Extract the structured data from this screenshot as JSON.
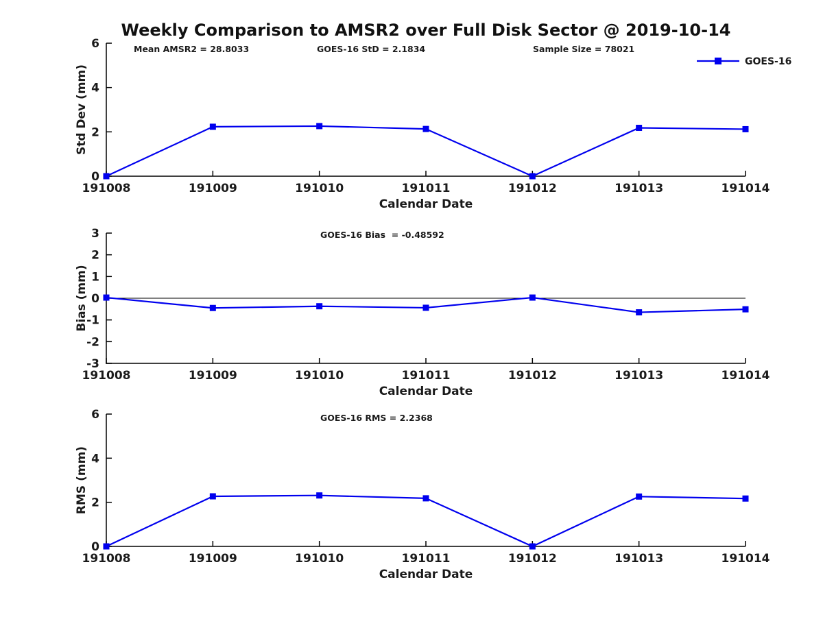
{
  "figure": {
    "title": "Weekly Comparison to AMSR2 over Full Disk Sector @ 2019-10-14",
    "background_color": "#ffffff",
    "text_color": "#1a1a1a",
    "axis_color": "#000000",
    "line_color": "#0000ee"
  },
  "legend": {
    "label": "GOES-16",
    "marker": "blue-square-line-sample",
    "position": "top-right"
  },
  "chart_data": [
    {
      "type": "line",
      "name": "std-dev",
      "annotations": [
        "Mean AMSR2 = 28.8033",
        "GOES-16 StD = 2.1834",
        "Sample Size = 78021"
      ],
      "categories": [
        "191008",
        "191009",
        "191010",
        "191011",
        "191012",
        "191013",
        "191014"
      ],
      "series": [
        {
          "name": "GOES-16",
          "color": "#0000ee",
          "marker": "square",
          "values": [
            0,
            2.23,
            2.26,
            2.13,
            0,
            2.18,
            2.12
          ]
        }
      ],
      "xlabel": "Calendar Date",
      "ylabel": "Std Dev (mm)",
      "ylim": [
        0,
        6
      ],
      "yticks": [
        0,
        2,
        4,
        6
      ],
      "zero_line": false,
      "grid": false,
      "show_legend": true
    },
    {
      "type": "line",
      "name": "bias",
      "annotations": [
        "GOES-16 Bias  = -0.48592"
      ],
      "categories": [
        "191008",
        "191009",
        "191010",
        "191011",
        "191012",
        "191013",
        "191014"
      ],
      "series": [
        {
          "name": "GOES-16",
          "color": "#0000ee",
          "marker": "square",
          "values": [
            0.03,
            -0.45,
            -0.37,
            -0.44,
            0.03,
            -0.65,
            -0.51
          ]
        }
      ],
      "xlabel": "Calendar Date",
      "ylabel": "Bias (mm)",
      "ylim": [
        -3,
        3
      ],
      "yticks": [
        3,
        2,
        1,
        0,
        -1,
        -2,
        -3
      ],
      "zero_line": true,
      "grid": false,
      "show_legend": false
    },
    {
      "type": "line",
      "name": "rms",
      "annotations": [
        "GOES-16 RMS = 2.2368"
      ],
      "categories": [
        "191008",
        "191009",
        "191010",
        "191011",
        "191012",
        "191013",
        "191014"
      ],
      "series": [
        {
          "name": "GOES-16",
          "color": "#0000ee",
          "marker": "square",
          "values": [
            0,
            2.27,
            2.31,
            2.18,
            0,
            2.26,
            2.17
          ]
        }
      ],
      "xlabel": "Calendar Date",
      "ylabel": "RMS (mm)",
      "ylim": [
        0,
        6
      ],
      "yticks": [
        0,
        2,
        4,
        6
      ],
      "zero_line": false,
      "grid": false,
      "show_legend": false
    }
  ]
}
